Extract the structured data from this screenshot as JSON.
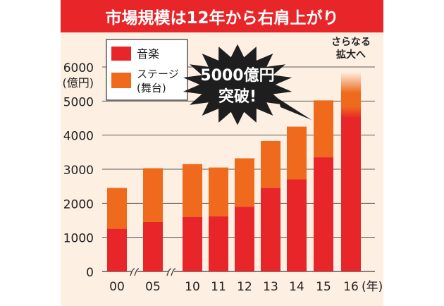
{
  "chart_data": {
    "type": "bar",
    "stacked": true,
    "title": "市場規模は12年から右肩上がり",
    "ylabel": "6000",
    "yunit": "(億円)",
    "xunit": "(年)",
    "ylim": [
      0,
      6000
    ],
    "yticks": [
      "0",
      "1000",
      "2000",
      "3000",
      "4000",
      "5000",
      "6000"
    ],
    "categories": [
      "00",
      "05",
      "10",
      "11",
      "12",
      "13",
      "14",
      "15",
      "16"
    ],
    "series": [
      {
        "name": "音楽",
        "values": [
          1250,
          1450,
          1600,
          1620,
          1900,
          2450,
          2700,
          3350,
          4500
        ]
      },
      {
        "name": "ステージ (舞台)",
        "values": [
          1200,
          1580,
          1550,
          1430,
          1420,
          1380,
          1550,
          1670,
          1350
        ]
      }
    ],
    "legend": {
      "items": [
        "音楽",
        "ステージ",
        "(舞台)"
      ],
      "placement": "top-left"
    },
    "annotations": {
      "burst": [
        "5000億円",
        "突破!"
      ],
      "projection": [
        "さらなる",
        "拡大へ"
      ]
    },
    "colors": {
      "music": "#e8262a",
      "stage": "#ef6a1c",
      "title_bg": "#e8262a",
      "chart_bg": "#fdefe2",
      "burst": "#1e1e1e"
    }
  }
}
